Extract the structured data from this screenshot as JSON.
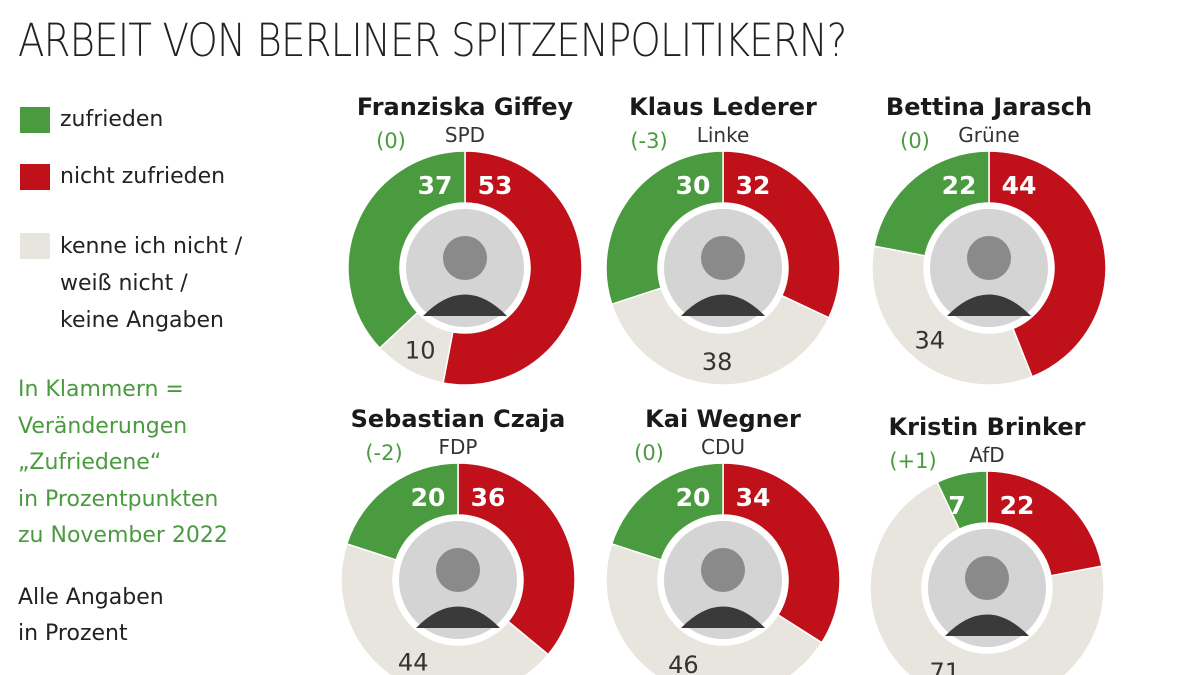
{
  "chart_data": {
    "type": "donut",
    "title": "ARBEIT VON BERLINER SPITZENPOLITIKERN?",
    "legend": [
      {
        "key": "zufrieden",
        "label": "zufrieden",
        "color": "#4a9a3f"
      },
      {
        "key": "nicht_zufrieden",
        "label": "nicht zufrieden",
        "color": "#c0111b"
      },
      {
        "key": "unbekannt",
        "label_lines": [
          "kenne ich nicht /",
          "weiß nicht /",
          "keine Angaben"
        ],
        "color": "#e7e5dd"
      }
    ],
    "note_lines": [
      "In Klammern =",
      "Veränderungen",
      "„Zufriedene“",
      "in Prozentpunkten",
      "zu November 2022"
    ],
    "unit_lines": [
      "Alle Angaben",
      "in Prozent"
    ],
    "charts": [
      {
        "name": "Franziska Giffey",
        "party": "SPD",
        "change": "(0)",
        "zufrieden": 37,
        "nicht_zufrieden": 53,
        "unbekannt": 10
      },
      {
        "name": "Klaus Lederer",
        "party": "Linke",
        "change": "(-3)",
        "zufrieden": 30,
        "nicht_zufrieden": 32,
        "unbekannt": 38
      },
      {
        "name": "Bettina Jarasch",
        "party": "Grüne",
        "change": "(0)",
        "zufrieden": 22,
        "nicht_zufrieden": 44,
        "unbekannt": 34
      },
      {
        "name": "Sebastian Czaja",
        "party": "FDP",
        "change": "(-2)",
        "zufrieden": 20,
        "nicht_zufrieden": 36,
        "unbekannt": 44
      },
      {
        "name": "Kai Wegner",
        "party": "CDU",
        "change": "(0)",
        "zufrieden": 20,
        "nicht_zufrieden": 34,
        "unbekannt": 46
      },
      {
        "name": "Kristin Brinker",
        "party": "AfD",
        "change": "(+1)",
        "zufrieden": 7,
        "nicht_zufrieden": 22,
        "unbekannt": 71
      }
    ]
  }
}
